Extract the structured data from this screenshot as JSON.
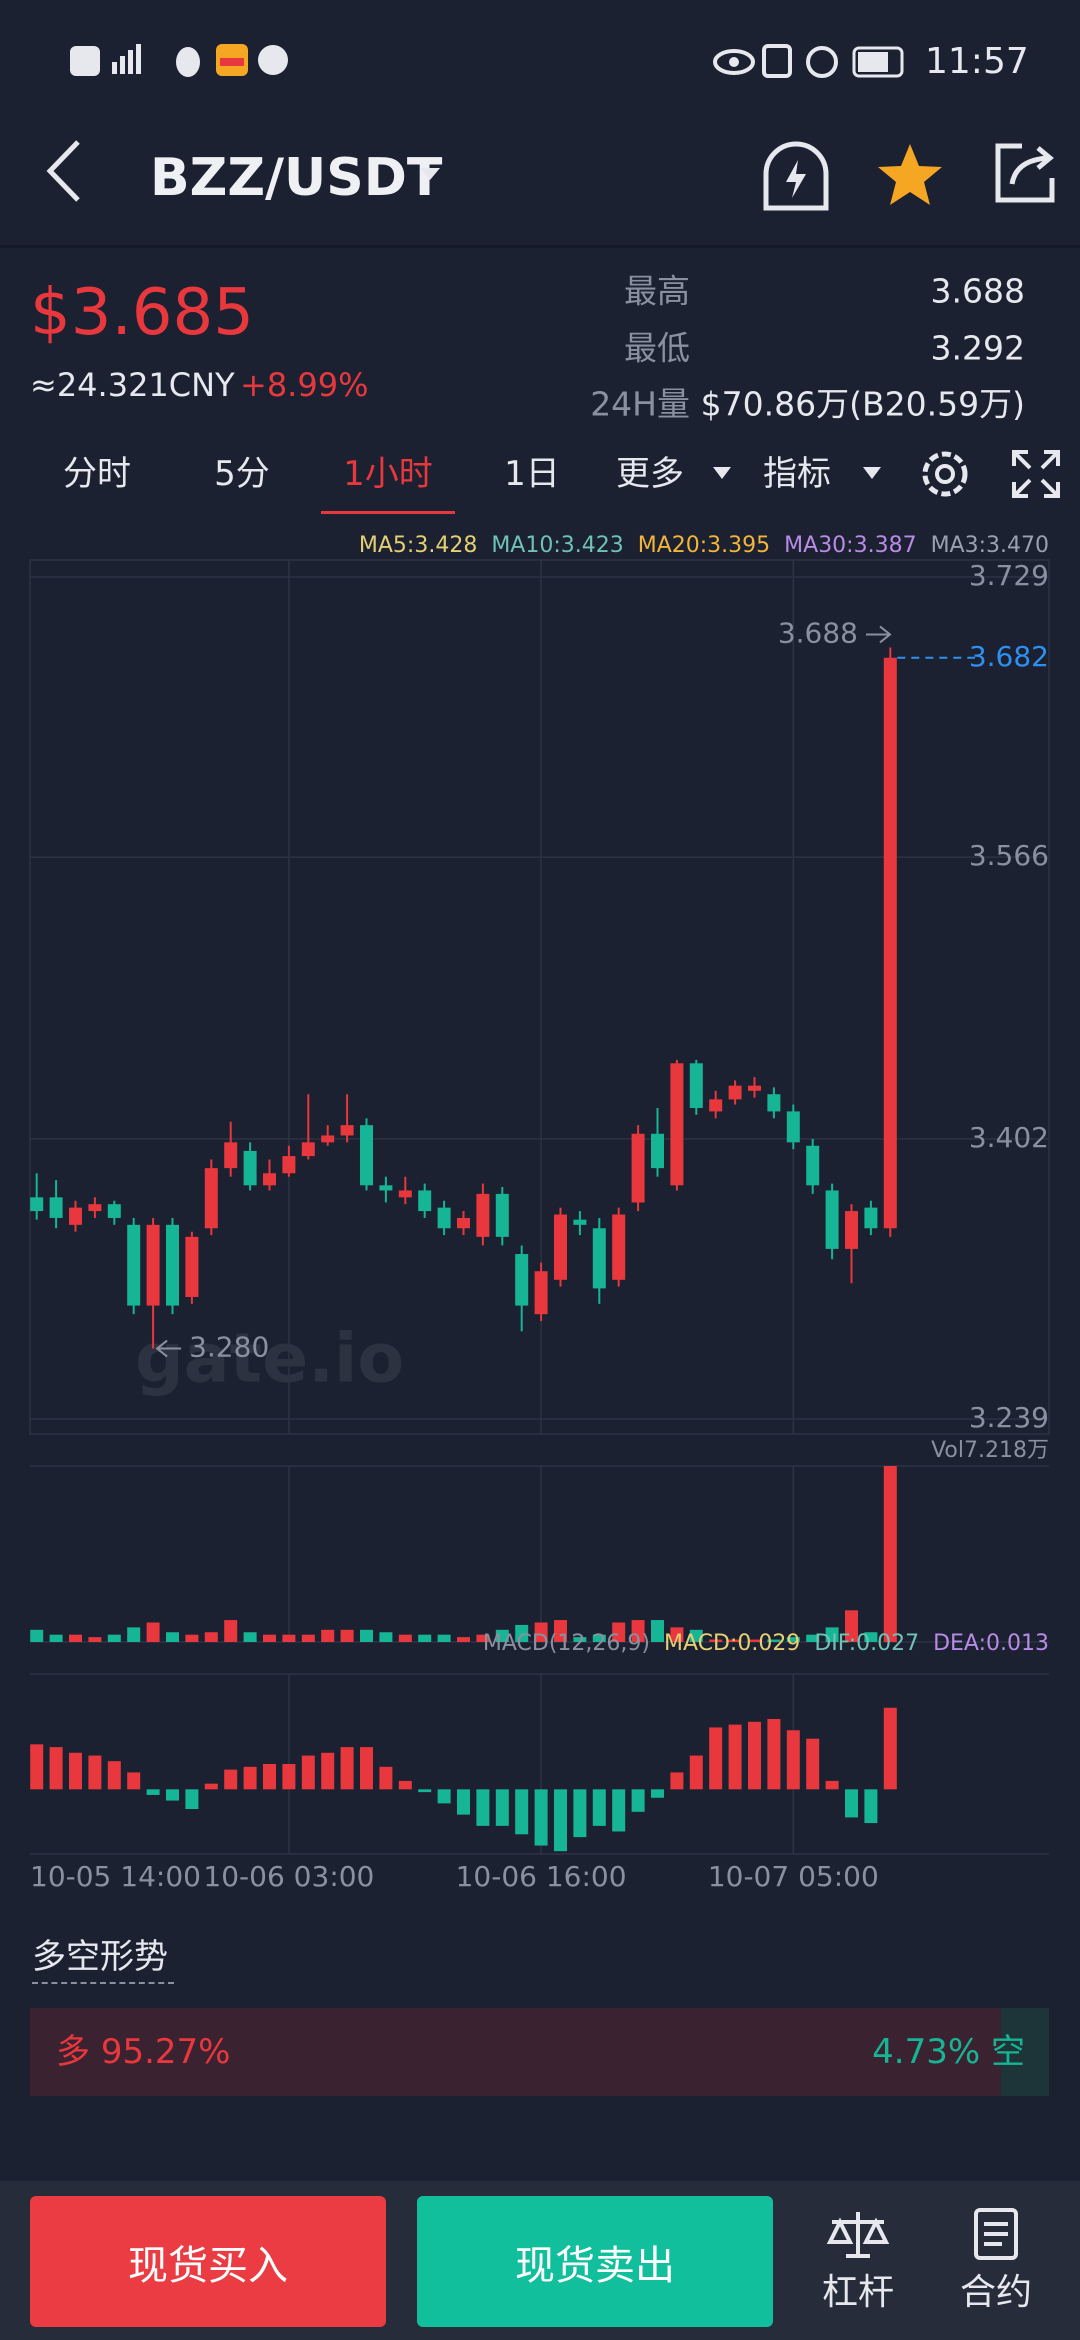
{
  "status_bar": {
    "time": "11:57"
  },
  "header": {
    "pair": "BZZ/USDT"
  },
  "ticker": {
    "price": "$3.685",
    "cny": "≈24.321CNY",
    "change": "+8.99%",
    "stats": [
      {
        "label": "最高",
        "value": "3.688"
      },
      {
        "label": "最低",
        "value": "3.292"
      },
      {
        "label": "24H量",
        "value": "$70.86万(B20.59万)"
      }
    ]
  },
  "tabs": {
    "items": [
      "分时",
      "5分",
      "1小时",
      "1日",
      "更多",
      "指标"
    ],
    "active": 2
  },
  "chart_data": [
    {
      "type": "candlestick",
      "legend": [
        {
          "name": "MA5:3.428",
          "color": "#e5cf73"
        },
        {
          "name": "MA10:3.423",
          "color": "#6fc2b4"
        },
        {
          "name": "MA20:3.395",
          "color": "#f2b43a"
        },
        {
          "name": "MA30:3.387",
          "color": "#b98be6"
        },
        {
          "name": "MA3:3.470",
          "color": "#9aa0ae"
        }
      ],
      "categories": [
        "10-05 14:00",
        null,
        null,
        null,
        null,
        null,
        null,
        null,
        null,
        null,
        null,
        null,
        null,
        "10-06 03:00",
        null,
        null,
        null,
        null,
        null,
        null,
        null,
        null,
        null,
        null,
        null,
        null,
        "10-06 16:00",
        null,
        null,
        null,
        null,
        null,
        null,
        null,
        null,
        null,
        null,
        null,
        null,
        "10-07 05:00",
        null,
        null,
        null,
        null,
        null
      ],
      "open": [
        3.368,
        3.368,
        3.352,
        3.36,
        3.364,
        3.352,
        3.305,
        3.352,
        3.31,
        3.35,
        3.385,
        3.395,
        3.375,
        3.382,
        3.392,
        3.4,
        3.404,
        3.41,
        3.375,
        3.368,
        3.372,
        3.362,
        3.35,
        3.345,
        3.37,
        3.335,
        3.3,
        3.32,
        3.355,
        3.35,
        3.32,
        3.365,
        3.405,
        3.375,
        3.446,
        3.418,
        3.425,
        3.43,
        3.428,
        3.418,
        3.398,
        3.372,
        3.338,
        3.362,
        3.35
      ],
      "high": [
        3.382,
        3.378,
        3.366,
        3.368,
        3.366,
        3.356,
        3.356,
        3.356,
        3.348,
        3.39,
        3.412,
        3.4,
        3.39,
        3.398,
        3.428,
        3.41,
        3.428,
        3.414,
        3.38,
        3.38,
        3.376,
        3.366,
        3.36,
        3.376,
        3.374,
        3.34,
        3.33,
        3.362,
        3.36,
        3.356,
        3.362,
        3.41,
        3.42,
        3.448,
        3.448,
        3.43,
        3.436,
        3.438,
        3.432,
        3.422,
        3.402,
        3.376,
        3.364,
        3.366,
        3.688
      ],
      "low": [
        3.355,
        3.35,
        3.348,
        3.356,
        3.352,
        3.3,
        3.28,
        3.3,
        3.306,
        3.346,
        3.38,
        3.372,
        3.372,
        3.38,
        3.39,
        3.398,
        3.4,
        3.372,
        3.365,
        3.364,
        3.356,
        3.346,
        3.346,
        3.34,
        3.34,
        3.29,
        3.296,
        3.316,
        3.346,
        3.306,
        3.316,
        3.36,
        3.38,
        3.372,
        3.416,
        3.414,
        3.422,
        3.426,
        3.414,
        3.396,
        3.37,
        3.332,
        3.318,
        3.346,
        3.345
      ],
      "close": [
        3.36,
        3.356,
        3.362,
        3.364,
        3.356,
        3.305,
        3.352,
        3.305,
        3.345,
        3.385,
        3.4,
        3.375,
        3.382,
        3.392,
        3.4,
        3.404,
        3.41,
        3.375,
        3.372,
        3.372,
        3.36,
        3.35,
        3.356,
        3.37,
        3.345,
        3.305,
        3.325,
        3.358,
        3.352,
        3.315,
        3.358,
        3.405,
        3.385,
        3.446,
        3.42,
        3.425,
        3.433,
        3.433,
        3.418,
        3.4,
        3.375,
        3.338,
        3.36,
        3.35,
        3.682
      ],
      "ylim": [
        3.239,
        3.729
      ],
      "yticks": [
        3.729,
        3.566,
        3.402,
        3.239
      ],
      "grid": true,
      "up_color": "#e8383d",
      "down_color": "#16b595",
      "last_price": 3.682,
      "last_price_color": "#2f8ff0",
      "max_marker": 3.688,
      "min_marker": {
        "value": 3.28,
        "label": "3.280"
      },
      "watermark": "gate.io"
    },
    {
      "type": "bar",
      "values": [
        0.5,
        0.3,
        0.3,
        0.2,
        0.3,
        0.6,
        0.8,
        0.4,
        0.3,
        0.4,
        0.9,
        0.4,
        0.3,
        0.3,
        0.3,
        0.5,
        0.5,
        0.5,
        0.4,
        0.3,
        0.3,
        0.3,
        0.2,
        0.3,
        0.5,
        0.7,
        0.8,
        0.9,
        0.2,
        0.3,
        0.8,
        0.9,
        0.9,
        0.6,
        0.5,
        0.1,
        0.1,
        0.1,
        0.1,
        0.2,
        0.3,
        0.6,
        1.3,
        0.4,
        7.218
      ],
      "ylim": [
        0,
        7.218
      ],
      "yticks": [
        {
          "value": 7.218,
          "label": "Vol7.218万"
        }
      ]
    },
    {
      "type": "bar",
      "legend": [
        {
          "name": "MACD(12,26,9)",
          "color": "#8a90a0"
        },
        {
          "name": "MACD:0.029",
          "color": "#e5cf73"
        },
        {
          "name": "DIF:0.027",
          "color": "#6fc2b4"
        },
        {
          "name": "DEA:0.013",
          "color": "#b98be6"
        }
      ],
      "values": [
        0.016,
        0.015,
        0.013,
        0.012,
        0.01,
        0.006,
        -0.002,
        -0.004,
        -0.007,
        0.002,
        0.007,
        0.008,
        0.009,
        0.009,
        0.012,
        0.013,
        0.015,
        0.015,
        0.008,
        0.003,
        -0.001,
        -0.005,
        -0.009,
        -0.013,
        -0.013,
        -0.016,
        -0.02,
        -0.022,
        -0.017,
        -0.013,
        -0.015,
        -0.008,
        -0.003,
        0.006,
        0.012,
        0.022,
        0.023,
        0.024,
        0.025,
        0.021,
        0.018,
        0.003,
        -0.01,
        -0.012,
        0.029
      ],
      "ylim": [
        -0.023,
        0.041
      ],
      "up_color": "#e8383d",
      "down_color": "#16b595"
    }
  ],
  "sentiment": {
    "title": "多空形势",
    "long": {
      "label": "多",
      "value": 95.27,
      "value_label": "95.27%",
      "color": "#e8383d"
    },
    "short": {
      "label": "空",
      "value": 4.73,
      "value_label": "4.73%",
      "color": "#16b595"
    }
  },
  "actions": {
    "buy": "现货买入",
    "sell": "现货卖出",
    "margin": "杠杆",
    "futures": "合约"
  }
}
